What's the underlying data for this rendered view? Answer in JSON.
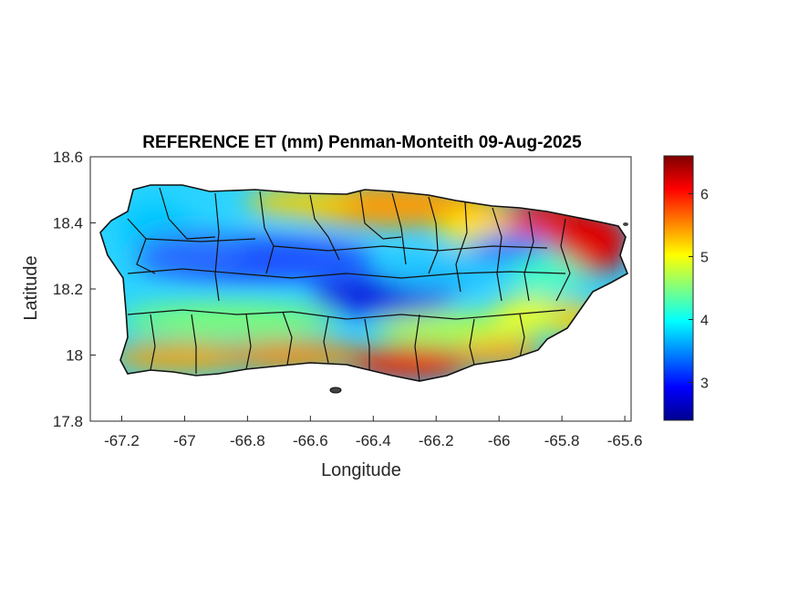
{
  "chart_data": {
    "type": "heatmap",
    "title": "REFERENCE ET (mm) Penman-Monteith 09-Aug-2025",
    "xlabel": "Longitude",
    "ylabel": "Latitude",
    "xlim": [
      -67.3,
      -65.58
    ],
    "ylim": [
      17.8,
      18.6
    ],
    "xticks": [
      "-67.2",
      "-67",
      "-66.8",
      "-66.6",
      "-66.4",
      "-66.2",
      "-66",
      "-65.8",
      "-65.6"
    ],
    "xtick_values": [
      -67.2,
      -67.0,
      -66.8,
      -66.6,
      -66.4,
      -66.2,
      -66.0,
      -65.8,
      -65.6
    ],
    "yticks": [
      "18.6",
      "18.4",
      "18.2",
      "18",
      "17.8"
    ],
    "ytick_values": [
      18.6,
      18.4,
      18.2,
      18.0,
      17.8
    ],
    "colorbar": {
      "colormap": "jet",
      "range": [
        2.4,
        6.6
      ],
      "ticks": [
        "6",
        "5",
        "4",
        "3"
      ],
      "tick_values": [
        6,
        5,
        4,
        3
      ]
    },
    "grid": false,
    "description_values": {
      "north_coast_west": 4.0,
      "north_coast_central": 5.6,
      "northeast_corner": 6.4,
      "central_mountains": 2.9,
      "south_coast": 5.9,
      "southeast_coast": 5.3
    }
  }
}
